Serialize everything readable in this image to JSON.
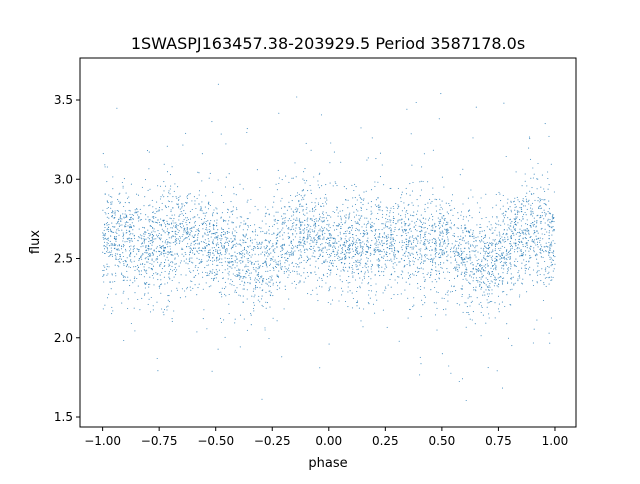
{
  "chart_data": {
    "type": "scatter",
    "title": "1SWASPJ163457.38-203929.5 Period 3587178.0s",
    "xlabel": "phase",
    "ylabel": "flux",
    "xlim": [
      -1.1,
      1.093
    ],
    "ylim": [
      1.437,
      3.765
    ],
    "xticks": [
      -1.0,
      -0.75,
      -0.5,
      -0.25,
      0.0,
      0.25,
      0.5,
      0.75,
      1.0
    ],
    "xtick_labels": [
      "−1.00",
      "−0.75",
      "−0.50",
      "−0.25",
      "0.00",
      "0.25",
      "0.50",
      "0.75",
      "1.00"
    ],
    "yticks": [
      1.5,
      2.0,
      2.5,
      3.0,
      3.5
    ],
    "ytick_labels": [
      "1.5",
      "2.0",
      "2.5",
      "3.0",
      "3.5"
    ],
    "grid": false,
    "marker_color": "#1f77b4",
    "binned_mean_flux": {
      "phase": [
        -1.0,
        -0.9,
        -0.8,
        -0.7,
        -0.6,
        -0.5,
        -0.4,
        -0.3,
        -0.2,
        -0.1,
        0.0,
        0.1,
        0.2,
        0.3,
        0.4,
        0.5,
        0.6,
        0.7,
        0.8,
        0.9,
        1.0
      ],
      "flux": [
        2.62,
        2.62,
        2.58,
        2.62,
        2.63,
        2.6,
        2.52,
        2.47,
        2.6,
        2.68,
        2.63,
        2.58,
        2.6,
        2.6,
        2.62,
        2.6,
        2.52,
        2.45,
        2.6,
        2.68,
        2.63
      ]
    },
    "flux_scatter_sigma": 0.15,
    "n_points_drawn": 5000
  }
}
